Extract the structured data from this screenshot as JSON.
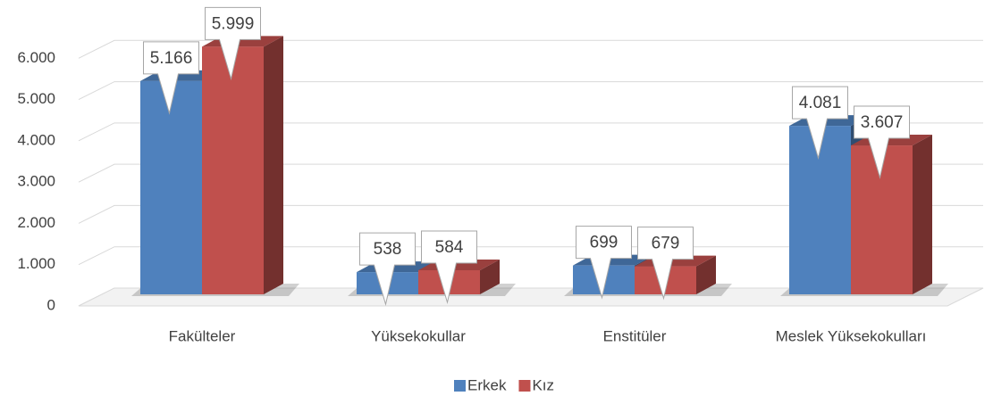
{
  "chart_data": {
    "type": "bar3d",
    "categories": [
      "Fakülteler",
      "Yüksekokullar",
      "Enstitüler",
      "Meslek Yüksekokulları"
    ],
    "series": [
      {
        "name": "Erkek",
        "color": "#4f81bd",
        "values": [
          5166,
          538,
          699,
          4081
        ],
        "value_labels": [
          "5.166",
          "538",
          "699",
          "4.081"
        ]
      },
      {
        "name": "Kız",
        "color": "#c0504d",
        "values": [
          5999,
          584,
          679,
          3607
        ],
        "value_labels": [
          "5.999",
          "584",
          "679",
          "3.607"
        ]
      }
    ],
    "ylim": [
      0,
      7000
    ],
    "yticks": [
      0,
      {
        "value": 1000,
        "label": "1.000"
      },
      {
        "value": 2000,
        "label": "2.000"
      },
      {
        "value": 3000,
        "label": "3.000"
      },
      {
        "value": 4000,
        "label": "4.000"
      },
      {
        "value": 5000,
        "label": "5.000"
      },
      {
        "value": 6000,
        "label": "6.000"
      }
    ],
    "grid": true,
    "legend": "bottom"
  }
}
